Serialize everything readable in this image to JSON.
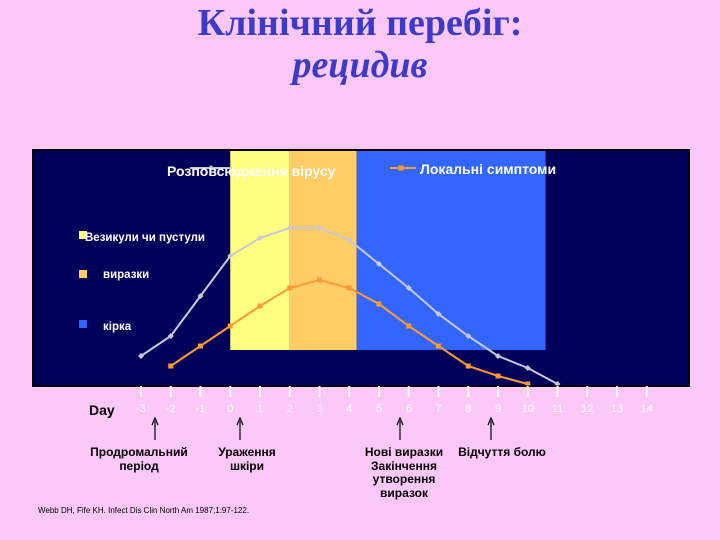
{
  "slide": {
    "title_line1": "Клінічний перебіг:",
    "title_line2": "рецидив"
  },
  "colors": {
    "background": "#FBC8F7",
    "plot_bg": "#00005A",
    "title": "#3B3BC8",
    "vesicles_band": "#FFFF80",
    "ulcers_band": "#FFCC66",
    "crust_band": "#3366FF",
    "virus_line": "#C8C8D8",
    "symptoms_line": "#FF9933"
  },
  "chart_data": {
    "type": "line",
    "x": [
      -3,
      -2,
      -1,
      0,
      1,
      2,
      3,
      4,
      5,
      6,
      7,
      8,
      9,
      10,
      11,
      12,
      13,
      14
    ],
    "xlabel": "Day",
    "xlim": [
      -3.5,
      14.5
    ],
    "ylim": [
      0,
      8
    ],
    "grid": false,
    "legend_position": "top",
    "series": [
      {
        "name": "Розповсюдження вірусу",
        "x": [
          -3,
          -2,
          -1,
          0,
          1,
          2,
          3,
          4,
          5,
          6,
          7,
          8,
          9,
          10,
          11
        ],
        "values": [
          1.4,
          2.4,
          4.4,
          6.4,
          7.3,
          7.8,
          7.8,
          7.2,
          6.0,
          4.8,
          3.5,
          2.4,
          1.4,
          0.8,
          0
        ]
      },
      {
        "name": "Локальні симптоми",
        "x": [
          -2,
          -1,
          0,
          1,
          2,
          3,
          4,
          5,
          6,
          7,
          8,
          9,
          10
        ],
        "values": [
          0.9,
          1.9,
          2.9,
          3.9,
          4.8,
          5.2,
          4.8,
          4.0,
          2.9,
          1.9,
          0.9,
          0.4,
          0
        ]
      }
    ],
    "stages": [
      {
        "name": "Везикули чи пустули",
        "from": 0,
        "to": 2,
        "color": "#FFFF80"
      },
      {
        "name": "виразки",
        "from": 2,
        "to": 4.25,
        "color": "#FFCC66"
      },
      {
        "name": "кірка",
        "from": 4.25,
        "to": 10.6,
        "color": "#3366FF"
      }
    ]
  },
  "annotations": [
    {
      "text": "Продромальний\nперіод",
      "day": -2.5
    },
    {
      "text": "Ураження\nшкіри",
      "day": 0.4
    },
    {
      "text": "Нові виразки\nЗакінчення\nутворення\nвиразок",
      "day": 5.6
    },
    {
      "text": "Відчуття болю",
      "day": 8.6
    }
  ],
  "citation": "Webb DH, Fife KH. Infect Dis Clin North Am 1987;1:97-122."
}
